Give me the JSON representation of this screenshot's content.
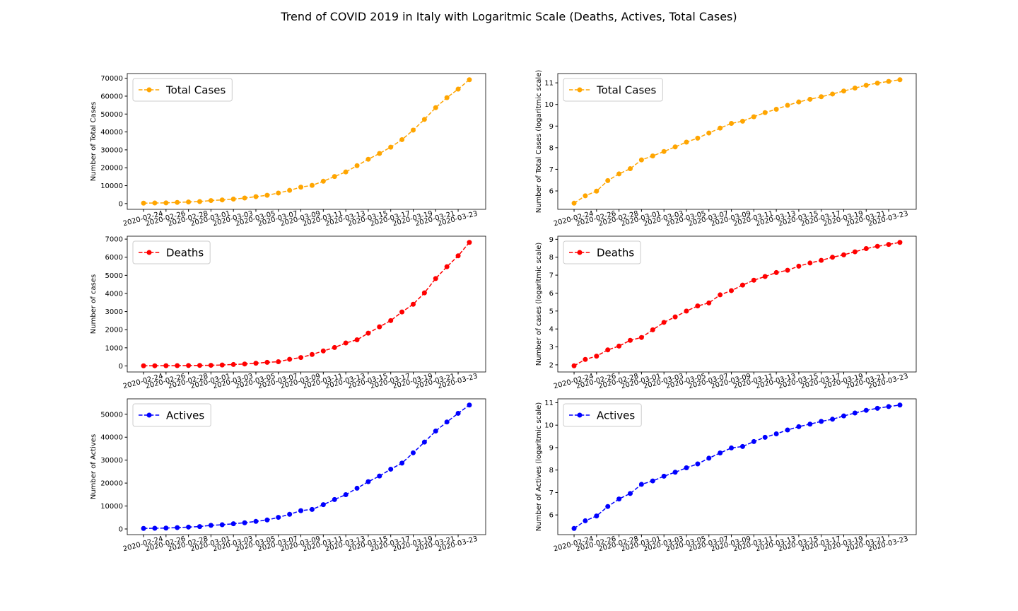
{
  "title": "Trend of COVID 2019 in Italy with Logaritmic Scale (Deaths, Actives, Total Cases)",
  "chart_data": [
    {
      "type": "line",
      "ylabel": "Number of Total Cases",
      "x": [
        "2020-02-24",
        "2020-02-25",
        "2020-02-26",
        "2020-02-27",
        "2020-02-28",
        "2020-02-29",
        "2020-03-01",
        "2020-03-02",
        "2020-03-03",
        "2020-03-04",
        "2020-03-05",
        "2020-03-06",
        "2020-03-07",
        "2020-03-08",
        "2020-03-09",
        "2020-03-10",
        "2020-03-11",
        "2020-03-12",
        "2020-03-13",
        "2020-03-14",
        "2020-03-15",
        "2020-03-16",
        "2020-03-17",
        "2020-03-18",
        "2020-03-19",
        "2020-03-20",
        "2020-03-21",
        "2020-03-22",
        "2020-03-23",
        "2020-03-24"
      ],
      "xticks": [
        "2020-02-24",
        "2020-02-26",
        "2020-02-28",
        "2020-03-01",
        "2020-03-03",
        "2020-03-05",
        "2020-03-07",
        "2020-03-09",
        "2020-03-11",
        "2020-03-13",
        "2020-03-15",
        "2020-03-17",
        "2020-03-19",
        "2020-03-21",
        "2020-03-23"
      ],
      "series": [
        {
          "name": "Total Cases",
          "color": "orange",
          "values": [
            229,
            322,
            400,
            650,
            888,
            1128,
            1694,
            2036,
            2502,
            3089,
            3858,
            4636,
            5883,
            7375,
            9172,
            10149,
            12462,
            15113,
            17660,
            21157,
            24747,
            27980,
            31506,
            35713,
            41035,
            47021,
            53578,
            59138,
            63927,
            69176
          ]
        }
      ],
      "ylim": [
        -3218,
        72623
      ],
      "yticks": [
        0,
        10000,
        20000,
        30000,
        40000,
        50000,
        60000,
        70000
      ],
      "legend": "upper left"
    },
    {
      "type": "line",
      "ylabel": "Number of Total Cases (logaritmic scale)",
      "x": [
        "2020-02-24",
        "2020-02-25",
        "2020-02-26",
        "2020-02-27",
        "2020-02-28",
        "2020-02-29",
        "2020-03-01",
        "2020-03-02",
        "2020-03-03",
        "2020-03-04",
        "2020-03-05",
        "2020-03-06",
        "2020-03-07",
        "2020-03-08",
        "2020-03-09",
        "2020-03-10",
        "2020-03-11",
        "2020-03-12",
        "2020-03-13",
        "2020-03-14",
        "2020-03-15",
        "2020-03-16",
        "2020-03-17",
        "2020-03-18",
        "2020-03-19",
        "2020-03-20",
        "2020-03-21",
        "2020-03-22",
        "2020-03-23",
        "2020-03-24"
      ],
      "xticks": [
        "2020-02-24",
        "2020-02-26",
        "2020-02-28",
        "2020-03-01",
        "2020-03-03",
        "2020-03-05",
        "2020-03-07",
        "2020-03-09",
        "2020-03-11",
        "2020-03-13",
        "2020-03-15",
        "2020-03-17",
        "2020-03-19",
        "2020-03-21",
        "2020-03-23"
      ],
      "series": [
        {
          "name": "Total Cases",
          "color": "orange",
          "values": [
            5.434,
            5.775,
            5.991,
            6.477,
            6.789,
            7.028,
            7.435,
            7.619,
            7.825,
            8.036,
            8.258,
            8.442,
            8.68,
            8.906,
            9.124,
            9.225,
            9.43,
            9.623,
            9.779,
            9.96,
            10.116,
            10.239,
            10.358,
            10.483,
            10.622,
            10.758,
            10.889,
            10.988,
            11.066,
            11.144
          ]
        }
      ],
      "ylim": [
        5.149,
        11.43
      ],
      "yticks": [
        6,
        7,
        8,
        9,
        10,
        11
      ],
      "legend": "upper left"
    },
    {
      "type": "line",
      "ylabel": "Number of cases",
      "x": [
        "2020-02-24",
        "2020-02-25",
        "2020-02-26",
        "2020-02-27",
        "2020-02-28",
        "2020-02-29",
        "2020-03-01",
        "2020-03-02",
        "2020-03-03",
        "2020-03-04",
        "2020-03-05",
        "2020-03-06",
        "2020-03-07",
        "2020-03-08",
        "2020-03-09",
        "2020-03-10",
        "2020-03-11",
        "2020-03-12",
        "2020-03-13",
        "2020-03-14",
        "2020-03-15",
        "2020-03-16",
        "2020-03-17",
        "2020-03-18",
        "2020-03-19",
        "2020-03-20",
        "2020-03-21",
        "2020-03-22",
        "2020-03-23",
        "2020-03-24"
      ],
      "xticks": [
        "2020-02-24",
        "2020-02-26",
        "2020-02-28",
        "2020-03-01",
        "2020-03-03",
        "2020-03-05",
        "2020-03-07",
        "2020-03-09",
        "2020-03-11",
        "2020-03-13",
        "2020-03-15",
        "2020-03-17",
        "2020-03-19",
        "2020-03-21",
        "2020-03-23"
      ],
      "series": [
        {
          "name": "Deaths",
          "color": "red",
          "values": [
            7,
            10,
            12,
            17,
            21,
            29,
            34,
            52,
            79,
            107,
            148,
            197,
            233,
            366,
            463,
            631,
            827,
            1016,
            1266,
            1441,
            1809,
            2158,
            2503,
            2978,
            3405,
            4032,
            4825,
            5476,
            6077,
            6820
          ]
        }
      ],
      "ylim": [
        -334,
        7161
      ],
      "yticks": [
        0,
        1000,
        2000,
        3000,
        4000,
        5000,
        6000,
        7000
      ],
      "legend": "upper left"
    },
    {
      "type": "line",
      "ylabel": "Number of cases (logaritmic scale)",
      "x": [
        "2020-02-24",
        "2020-02-25",
        "2020-02-26",
        "2020-02-27",
        "2020-02-28",
        "2020-02-29",
        "2020-03-01",
        "2020-03-02",
        "2020-03-03",
        "2020-03-04",
        "2020-03-05",
        "2020-03-06",
        "2020-03-07",
        "2020-03-08",
        "2020-03-09",
        "2020-03-10",
        "2020-03-11",
        "2020-03-12",
        "2020-03-13",
        "2020-03-14",
        "2020-03-15",
        "2020-03-16",
        "2020-03-17",
        "2020-03-18",
        "2020-03-19",
        "2020-03-20",
        "2020-03-21",
        "2020-03-22",
        "2020-03-23",
        "2020-03-24"
      ],
      "xticks": [
        "2020-02-24",
        "2020-02-26",
        "2020-02-28",
        "2020-03-01",
        "2020-03-03",
        "2020-03-05",
        "2020-03-07",
        "2020-03-09",
        "2020-03-11",
        "2020-03-13",
        "2020-03-15",
        "2020-03-17",
        "2020-03-19",
        "2020-03-21",
        "2020-03-23"
      ],
      "series": [
        {
          "name": "Deaths",
          "color": "red",
          "values": [
            1.946,
            2.303,
            2.485,
            2.833,
            3.045,
            3.367,
            3.526,
            3.951,
            4.369,
            4.673,
            4.997,
            5.283,
            5.451,
            5.903,
            6.138,
            6.447,
            6.718,
            6.924,
            7.144,
            7.273,
            7.5,
            7.677,
            7.825,
            7.999,
            8.133,
            8.302,
            8.482,
            8.608,
            8.712,
            8.828
          ]
        }
      ],
      "ylim": [
        1.602,
        9.172
      ],
      "yticks": [
        2,
        3,
        4,
        5,
        6,
        7,
        8,
        9
      ],
      "legend": "upper left"
    },
    {
      "type": "line",
      "ylabel": "Number of Actives",
      "x": [
        "2020-02-24",
        "2020-02-25",
        "2020-02-26",
        "2020-02-27",
        "2020-02-28",
        "2020-02-29",
        "2020-03-01",
        "2020-03-02",
        "2020-03-03",
        "2020-03-04",
        "2020-03-05",
        "2020-03-06",
        "2020-03-07",
        "2020-03-08",
        "2020-03-09",
        "2020-03-10",
        "2020-03-11",
        "2020-03-12",
        "2020-03-13",
        "2020-03-14",
        "2020-03-15",
        "2020-03-16",
        "2020-03-17",
        "2020-03-18",
        "2020-03-19",
        "2020-03-20",
        "2020-03-21",
        "2020-03-22",
        "2020-03-23",
        "2020-03-24"
      ],
      "xticks": [
        "2020-02-24",
        "2020-02-26",
        "2020-02-28",
        "2020-03-01",
        "2020-03-03",
        "2020-03-05",
        "2020-03-07",
        "2020-03-09",
        "2020-03-11",
        "2020-03-13",
        "2020-03-15",
        "2020-03-17",
        "2020-03-19",
        "2020-03-21",
        "2020-03-23"
      ],
      "series": [
        {
          "name": "Actives",
          "color": "blue",
          "values": [
            221,
            311,
            385,
            588,
            821,
            1049,
            1577,
            1835,
            2263,
            2706,
            3296,
            3916,
            5061,
            6387,
            7985,
            8514,
            10590,
            12839,
            14955,
            17750,
            20603,
            23073,
            26062,
            28710,
            33190,
            37860,
            42681,
            46638,
            50418,
            54030
          ]
        }
      ],
      "ylim": [
        -2469,
        56720
      ],
      "yticks": [
        0,
        10000,
        20000,
        30000,
        40000,
        50000
      ],
      "legend": "upper left"
    },
    {
      "type": "line",
      "ylabel": "Number of Actives (logaritmic scale)",
      "x": [
        "2020-02-24",
        "2020-02-25",
        "2020-02-26",
        "2020-02-27",
        "2020-02-28",
        "2020-02-29",
        "2020-03-01",
        "2020-03-02",
        "2020-03-03",
        "2020-03-04",
        "2020-03-05",
        "2020-03-06",
        "2020-03-07",
        "2020-03-08",
        "2020-03-09",
        "2020-03-10",
        "2020-03-11",
        "2020-03-12",
        "2020-03-13",
        "2020-03-14",
        "2020-03-15",
        "2020-03-16",
        "2020-03-17",
        "2020-03-18",
        "2020-03-19",
        "2020-03-20",
        "2020-03-21",
        "2020-03-22",
        "2020-03-23",
        "2020-03-24"
      ],
      "xticks": [
        "2020-02-24",
        "2020-02-26",
        "2020-02-28",
        "2020-03-01",
        "2020-03-03",
        "2020-03-05",
        "2020-03-07",
        "2020-03-09",
        "2020-03-11",
        "2020-03-13",
        "2020-03-15",
        "2020-03-17",
        "2020-03-19",
        "2020-03-21",
        "2020-03-23"
      ],
      "series": [
        {
          "name": "Actives",
          "color": "blue",
          "values": [
            5.398,
            5.74,
            5.953,
            6.377,
            6.711,
            6.956,
            7.363,
            7.515,
            7.725,
            7.903,
            8.1,
            8.273,
            8.529,
            8.762,
            8.985,
            9.049,
            9.268,
            9.46,
            9.613,
            9.784,
            9.933,
            10.046,
            10.168,
            10.265,
            10.41,
            10.542,
            10.662,
            10.75,
            10.828,
            10.897
          ]
        }
      ],
      "ylim": [
        5.123,
        11.172
      ],
      "yticks": [
        6,
        7,
        8,
        9,
        10,
        11
      ],
      "legend": "upper left"
    }
  ]
}
